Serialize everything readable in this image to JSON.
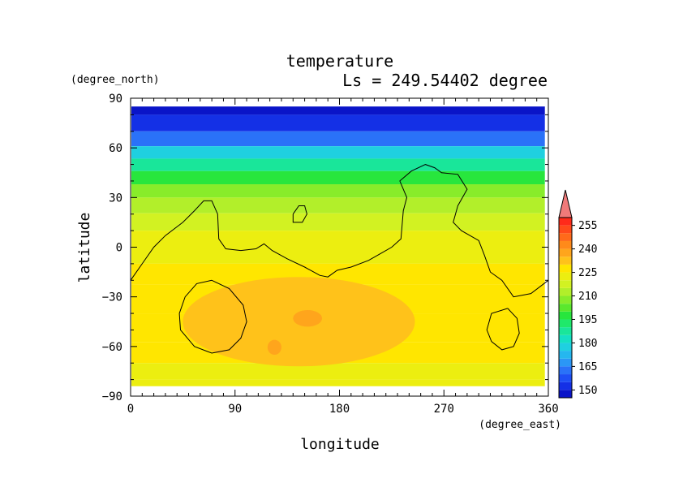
{
  "chart_data": {
    "type": "heatmap",
    "title": "temperature",
    "subtitle": "Ls = 249.54402 degree",
    "xlabel": "longitude",
    "ylabel": "latitude",
    "xunits": "(degree_east)",
    "yunits": "(degree_north)",
    "xlim": [
      0,
      360
    ],
    "ylim": [
      -90,
      90
    ],
    "x_ticks": [
      0,
      90,
      180,
      270,
      360
    ],
    "y_ticks": [
      90,
      60,
      30,
      0,
      -30,
      -60,
      -90
    ],
    "colorbar": {
      "levels": [
        145,
        150,
        155,
        160,
        165,
        170,
        175,
        180,
        185,
        190,
        195,
        200,
        205,
        210,
        215,
        220,
        225,
        230,
        235,
        240,
        245,
        250,
        255,
        260
      ],
      "colors": [
        "#0a14c8",
        "#1430e6",
        "#1e4ff5",
        "#2a72f8",
        "#2b97f6",
        "#25b7ef",
        "#1fd0e0",
        "#15e0c4",
        "#19e69a",
        "#1fe96b",
        "#28e63d",
        "#5ae82d",
        "#88ec2a",
        "#b2ef2a",
        "#d2f222",
        "#ecee10",
        "#ffe600",
        "#ffc21a",
        "#ffa51c",
        "#ff8a1a",
        "#ff6a1a",
        "#ff4a1a",
        "#ff2a1a"
      ],
      "tick_labels": [
        "150",
        "165",
        "180",
        "195",
        "210",
        "225",
        "240",
        "255"
      ],
      "overflow_color": "#f07a7a"
    },
    "lat_rows": [
      {
        "lat": 85,
        "value": 149
      },
      {
        "lat": 75,
        "value": 153
      },
      {
        "lat": 65,
        "value": 163
      },
      {
        "lat": 57,
        "value": 178
      },
      {
        "lat": 50,
        "value": 188
      },
      {
        "lat": 42,
        "value": 197
      },
      {
        "lat": 34,
        "value": 206
      },
      {
        "lat": 26,
        "value": 213
      },
      {
        "lat": 15,
        "value": 218
      },
      {
        "lat": 5,
        "value": 221
      },
      {
        "lat": -5,
        "value": 223
      },
      {
        "lat": -15,
        "value": 225
      },
      {
        "lat": -30,
        "value": 227
      },
      {
        "lat": -50,
        "value": 227
      },
      {
        "lat": -65,
        "value": 226
      },
      {
        "lat": -75,
        "value": 224
      },
      {
        "lat": -85,
        "value": 221
      }
    ],
    "warm_regions": [
      {
        "value": 230,
        "lon": [
          45,
          245
        ],
        "lat": [
          -72,
          -18
        ]
      },
      {
        "value": 238,
        "lon": [
          140,
          165
        ],
        "lat": [
          -48,
          -38
        ]
      },
      {
        "value": 238,
        "lon": [
          118,
          130
        ],
        "lat": [
          -65,
          -56
        ]
      }
    ],
    "contour_lines": [
      {
        "points": [
          [
            0,
            -20
          ],
          [
            10,
            -10
          ],
          [
            20,
            0
          ],
          [
            30,
            7
          ],
          [
            45,
            15
          ],
          [
            55,
            22
          ],
          [
            63,
            28
          ],
          [
            70,
            28
          ],
          [
            75,
            20
          ],
          [
            76,
            5
          ],
          [
            82,
            -1
          ],
          [
            95,
            -2
          ],
          [
            108,
            -1
          ],
          [
            115,
            2
          ],
          [
            122,
            -2
          ],
          [
            135,
            -7
          ],
          [
            150,
            -12
          ],
          [
            163,
            -17
          ],
          [
            170,
            -18
          ],
          [
            178,
            -14
          ],
          [
            190,
            -12
          ],
          [
            205,
            -8
          ],
          [
            215,
            -4
          ],
          [
            225,
            0
          ],
          [
            233,
            5
          ],
          [
            235,
            22
          ],
          [
            238,
            30
          ],
          [
            232,
            40
          ],
          [
            242,
            46
          ],
          [
            254,
            50
          ],
          [
            262,
            48
          ],
          [
            268,
            45
          ],
          [
            282,
            44
          ],
          [
            290,
            35
          ],
          [
            282,
            25
          ],
          [
            278,
            15
          ],
          [
            285,
            10
          ],
          [
            300,
            4
          ],
          [
            305,
            -5
          ],
          [
            310,
            -15
          ],
          [
            320,
            -20
          ],
          [
            330,
            -30
          ],
          [
            345,
            -28
          ],
          [
            360,
            -20
          ]
        ]
      },
      {
        "points": [
          [
            140,
            20
          ],
          [
            145,
            25
          ],
          [
            150,
            25
          ],
          [
            152,
            20
          ],
          [
            148,
            15
          ],
          [
            140,
            15
          ],
          [
            140,
            20
          ]
        ]
      },
      {
        "points": [
          [
            70,
            -20
          ],
          [
            85,
            -25
          ],
          [
            97,
            -35
          ],
          [
            100,
            -45
          ],
          [
            95,
            -55
          ],
          [
            85,
            -62
          ],
          [
            70,
            -64
          ],
          [
            55,
            -60
          ],
          [
            43,
            -50
          ],
          [
            42,
            -40
          ],
          [
            47,
            -30
          ],
          [
            57,
            -22
          ],
          [
            70,
            -20
          ]
        ]
      },
      {
        "points": [
          [
            325,
            -37
          ],
          [
            333,
            -43
          ],
          [
            335,
            -52
          ],
          [
            330,
            -60
          ],
          [
            320,
            -62
          ],
          [
            311,
            -57
          ],
          [
            307,
            -50
          ],
          [
            311,
            -40
          ],
          [
            325,
            -37
          ]
        ]
      }
    ]
  }
}
